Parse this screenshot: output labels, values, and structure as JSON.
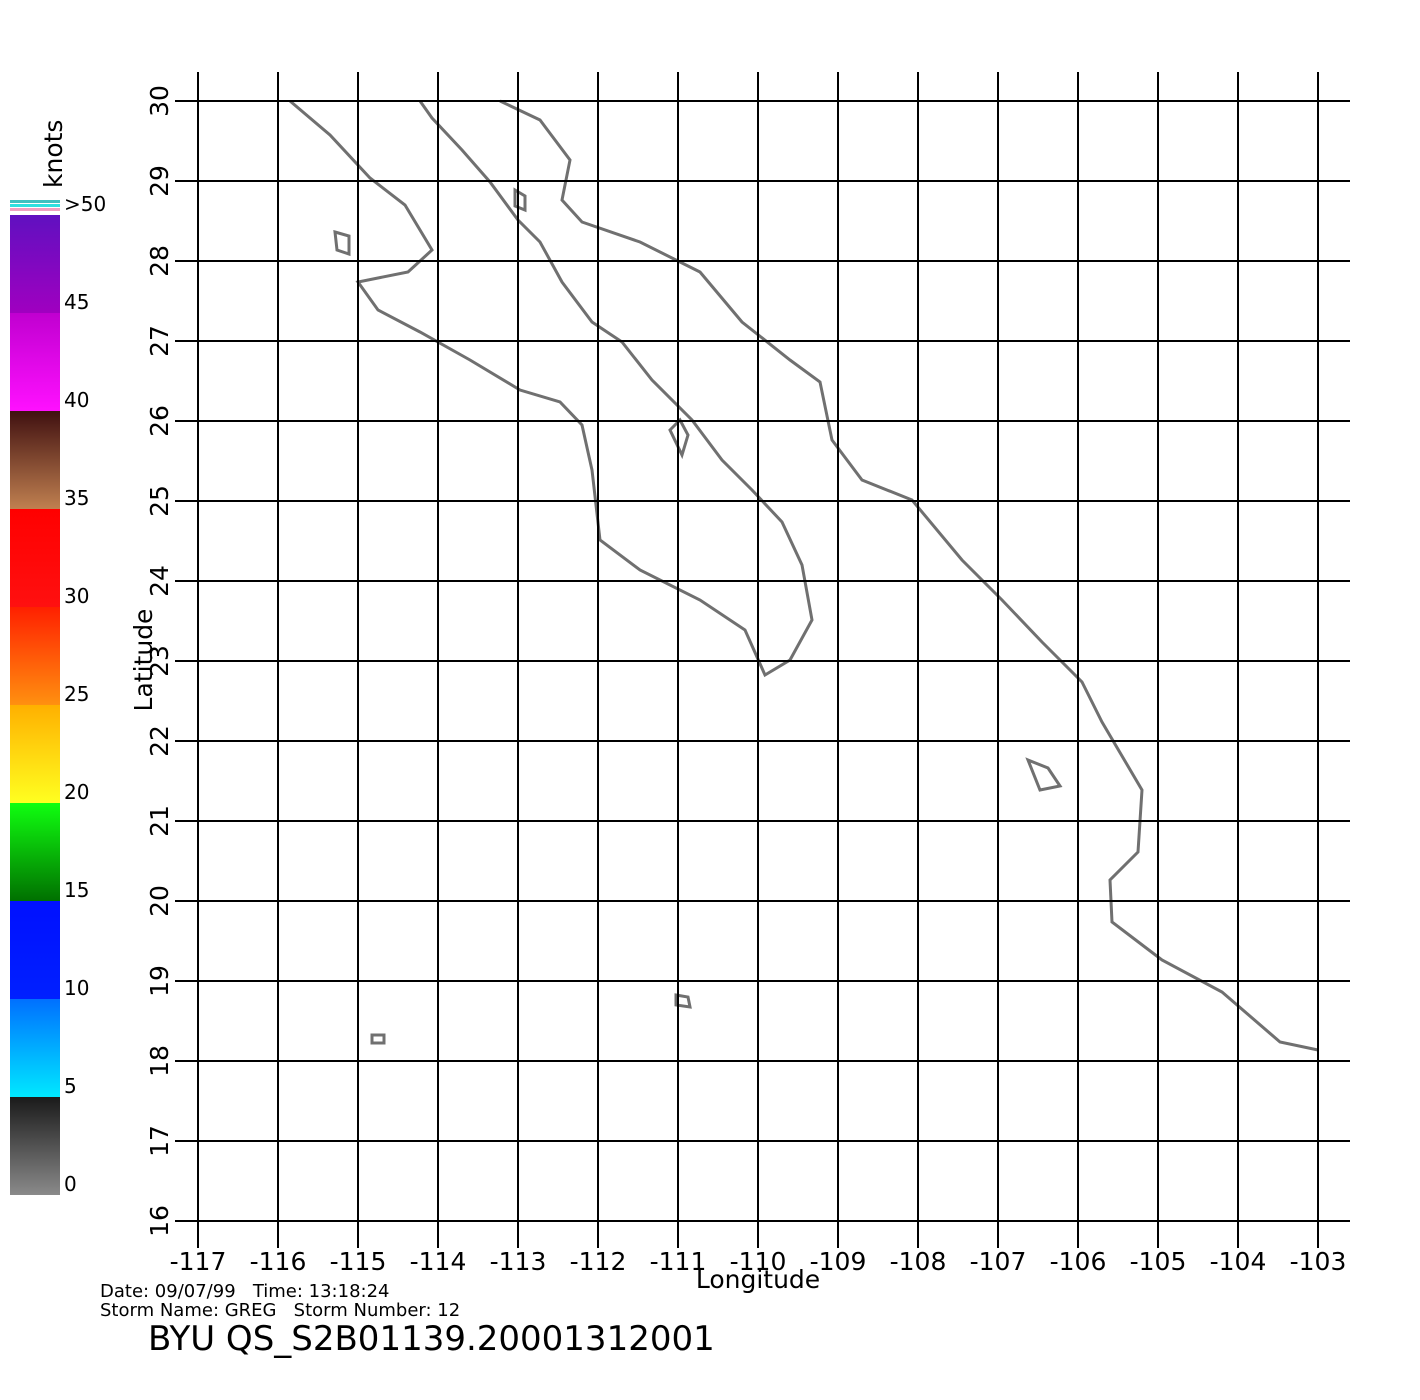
{
  "chart_data": {
    "type": "map",
    "x_label": "Longitude",
    "y_label": "Latitude",
    "xlim": [
      -117,
      -103
    ],
    "ylim": [
      16,
      30
    ],
    "xticks": [
      -117,
      -116,
      -115,
      -114,
      -113,
      -112,
      -111,
      -110,
      -109,
      -108,
      -107,
      -106,
      -105,
      -104,
      -103
    ],
    "yticks": [
      16,
      17,
      18,
      19,
      20,
      21,
      22,
      23,
      24,
      25,
      26,
      27,
      28,
      29,
      30
    ],
    "grid": true,
    "coast_color": "#707070",
    "colorbar": {
      "label": "knots",
      "lim": [
        0,
        50
      ],
      "ticks": [
        0,
        5,
        10,
        15,
        20,
        25,
        30,
        35,
        40,
        45,
        {
          "value": 50,
          "label": ">50"
        }
      ],
      "colors": [
        [
          "#8a8a8a",
          "#1a1a1a"
        ],
        [
          "#00e8ff",
          "#0070ff"
        ],
        [
          "#0020ff",
          "#0010ff"
        ],
        [
          "#007000",
          "#10ff10"
        ],
        [
          "#ffff20",
          "#ffb000"
        ],
        [
          "#ff9010",
          "#ff2000"
        ],
        [
          "#ff1010",
          "#ff0000"
        ],
        [
          "#c08050",
          "#401010"
        ],
        [
          "#ff10ff",
          "#c000d0"
        ],
        [
          "#a000c0",
          "#6010c0"
        ]
      ]
    },
    "info": [
      "Date: 09/07/99   Time: 13:18:24",
      "Storm Name: GREG   Storm Number: 12"
    ],
    "title": "BYU QS_S2B01139.20001312001"
  }
}
